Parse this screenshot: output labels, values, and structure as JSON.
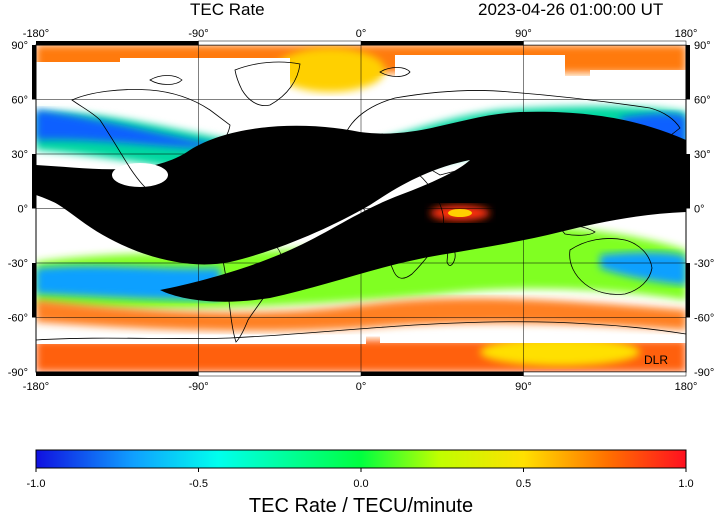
{
  "header": {
    "title": "TEC Rate",
    "timestamp": "2023-04-26  01:00:00 UT"
  },
  "map": {
    "lon_ticks": [
      "-180°",
      "-90°",
      "0°",
      "90°",
      "180°"
    ],
    "lat_ticks": [
      "90°",
      "60°",
      "30°",
      "0°",
      "-30°",
      "-60°",
      "-90°"
    ],
    "credit": "DLR"
  },
  "colorbar": {
    "ticks": [
      "-1.0",
      "-0.5",
      "0.0",
      "0.5",
      "1.0"
    ],
    "label": "TEC Rate / TECU/minute",
    "range": [
      -1.0,
      1.0
    ],
    "colors": [
      "#1010e0",
      "#10a0ff",
      "#00ffee",
      "#00ff40",
      "#c0ff00",
      "#ffe000",
      "#ff7000",
      "#ff1020"
    ]
  },
  "colors": {
    "saturated_negative": "#000000",
    "saturated_positive": "#ffffff",
    "coastline": "#000000"
  }
}
